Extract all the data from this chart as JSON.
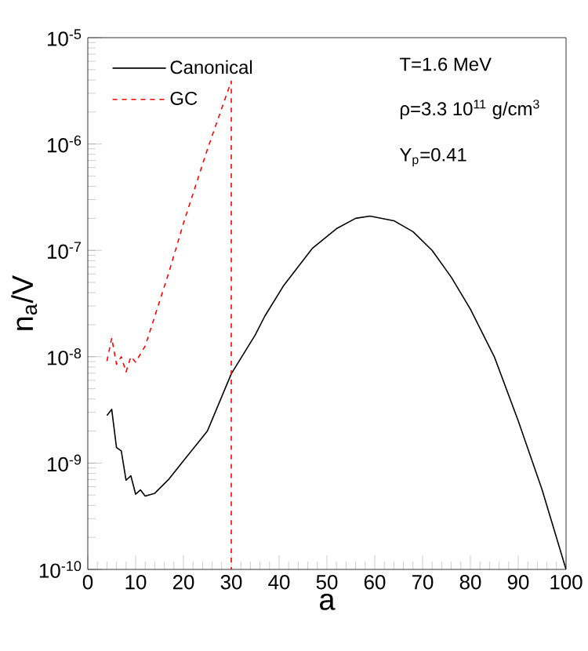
{
  "chart_data": {
    "type": "line",
    "xlabel": "a",
    "ylabel": "n$_{a}$/V",
    "log": "y",
    "xlim": [
      0,
      100
    ],
    "ylim": [
      1e-10,
      1e-05
    ],
    "xticks": [
      0,
      10,
      20,
      30,
      40,
      50,
      60,
      70,
      80,
      90,
      100
    ],
    "yticks": [
      {
        "value": 1e-10,
        "label": "10$^{-10}$"
      },
      {
        "value": 1e-09,
        "label": "10$^{-9}$"
      },
      {
        "value": 1e-08,
        "label": "10$^{-8}$"
      },
      {
        "value": 1e-07,
        "label": "10$^{-7}$"
      },
      {
        "value": 1e-06,
        "label": "10$^{-6}$"
      },
      {
        "value": 1e-05,
        "label": "10$^{-5}$"
      }
    ],
    "legend": "top left",
    "grid": false,
    "marker": "none",
    "annotations": [
      "T=1.6 MeV",
      "ρ=3.3 10$^{11}$ g/cm$^{3}$",
      "Y$_{p}$=0.41"
    ],
    "series": [
      {
        "name": "Canonical",
        "color": "#000000",
        "line_style": "solid",
        "x": [
          4,
          5,
          6,
          7,
          8,
          9,
          10,
          11,
          12,
          14,
          17,
          20,
          25,
          30,
          35,
          37,
          41,
          47,
          52,
          56,
          59,
          64,
          68,
          72,
          76,
          80,
          85,
          90,
          95,
          100
        ],
        "values": [
          2.8e-09,
          3.2e-09,
          1.4e-09,
          1.3e-09,
          6.9e-10,
          7.6e-10,
          5.1e-10,
          5.6e-10,
          4.9e-10,
          5.2e-10,
          7.1e-10,
          1.05e-09,
          2e-09,
          6.9e-09,
          1.6e-08,
          2.4e-08,
          4.7e-08,
          1.05e-07,
          1.6e-07,
          2e-07,
          2.1e-07,
          1.9e-07,
          1.5e-07,
          1e-07,
          5.6e-08,
          2.8e-08,
          1e-08,
          2.5e-09,
          5.6e-10,
          1e-10
        ]
      },
      {
        "name": "GC",
        "color": "#ff0000",
        "line_style": "dashed",
        "x": [
          4,
          5,
          6,
          7,
          8,
          9,
          10,
          12,
          14,
          17,
          20,
          25,
          30,
          30
        ],
        "values": [
          9.1e-09,
          1.5e-08,
          8.5e-09,
          1e-08,
          7.2e-09,
          1e-08,
          8.9e-09,
          1.26e-08,
          2.4e-08,
          6.3e-08,
          1.8e-07,
          8.9e-07,
          3.9e-06,
          1e-10
        ]
      }
    ]
  }
}
